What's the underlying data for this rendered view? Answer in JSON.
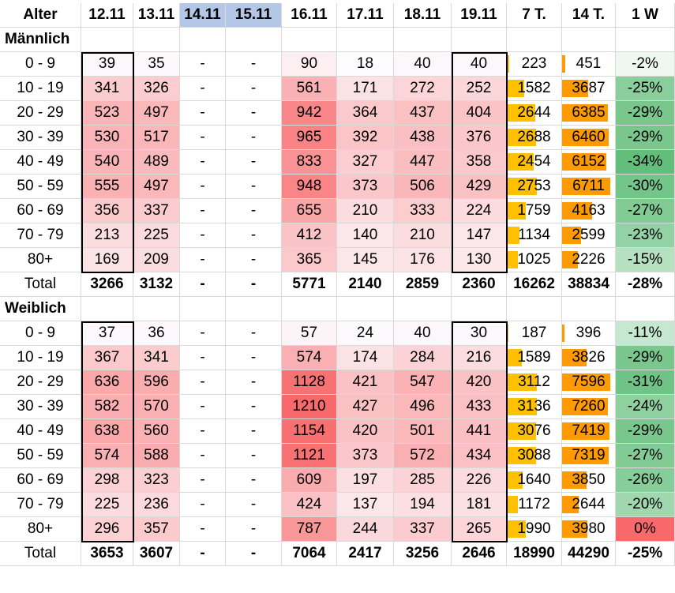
{
  "columns": [
    "Alter",
    "12.11",
    "13.11",
    "14.11",
    "15.11",
    "16.11",
    "17.11",
    "18.11",
    "19.11",
    "7 T.",
    "14 T.",
    "1 W"
  ],
  "empty_value": "-",
  "sections": [
    {
      "label": "Männlich",
      "rows": [
        {
          "age": "0 - 9",
          "v": [
            39,
            35,
            90,
            18,
            40,
            40
          ],
          "t7": 223,
          "t14": 451,
          "w": "-2%"
        },
        {
          "age": "10 - 19",
          "v": [
            341,
            326,
            561,
            171,
            272,
            252
          ],
          "t7": 1582,
          "t14": 3687,
          "w": "-25%"
        },
        {
          "age": "20 - 29",
          "v": [
            523,
            497,
            942,
            364,
            437,
            404
          ],
          "t7": 2644,
          "t14": 6385,
          "w": "-29%"
        },
        {
          "age": "30 - 39",
          "v": [
            530,
            517,
            965,
            392,
            438,
            376
          ],
          "t7": 2688,
          "t14": 6460,
          "w": "-29%"
        },
        {
          "age": "40 - 49",
          "v": [
            540,
            489,
            833,
            327,
            447,
            358
          ],
          "t7": 2454,
          "t14": 6152,
          "w": "-34%"
        },
        {
          "age": "50 - 59",
          "v": [
            555,
            497,
            948,
            373,
            506,
            429
          ],
          "t7": 2753,
          "t14": 6711,
          "w": "-30%"
        },
        {
          "age": "60 - 69",
          "v": [
            356,
            337,
            655,
            210,
            333,
            224
          ],
          "t7": 1759,
          "t14": 4163,
          "w": "-27%"
        },
        {
          "age": "70 - 79",
          "v": [
            213,
            225,
            412,
            140,
            210,
            147
          ],
          "t7": 1134,
          "t14": 2599,
          "w": "-23%"
        },
        {
          "age": "80+",
          "v": [
            169,
            209,
            365,
            145,
            176,
            130
          ],
          "t7": 1025,
          "t14": 2226,
          "w": "-15%"
        }
      ],
      "total": {
        "label": "Total",
        "v": [
          3266,
          3132,
          5771,
          2140,
          2859,
          2360
        ],
        "t7": 16262,
        "t14": 38834,
        "w": "-28%"
      }
    },
    {
      "label": "Weiblich",
      "rows": [
        {
          "age": "0 - 9",
          "v": [
            37,
            36,
            57,
            24,
            40,
            30
          ],
          "t7": 187,
          "t14": 396,
          "w": "-11%"
        },
        {
          "age": "10 - 19",
          "v": [
            367,
            341,
            574,
            174,
            284,
            216
          ],
          "t7": 1589,
          "t14": 3826,
          "w": "-29%"
        },
        {
          "age": "20 - 29",
          "v": [
            636,
            596,
            1128,
            421,
            547,
            420
          ],
          "t7": 3112,
          "t14": 7596,
          "w": "-31%"
        },
        {
          "age": "30 - 39",
          "v": [
            582,
            570,
            1210,
            427,
            496,
            433
          ],
          "t7": 3136,
          "t14": 7260,
          "w": "-24%"
        },
        {
          "age": "40 - 49",
          "v": [
            638,
            560,
            1154,
            420,
            501,
            441
          ],
          "t7": 3076,
          "t14": 7419,
          "w": "-29%"
        },
        {
          "age": "50 - 59",
          "v": [
            574,
            588,
            1121,
            373,
            572,
            434
          ],
          "t7": 3088,
          "t14": 7319,
          "w": "-27%"
        },
        {
          "age": "60 - 69",
          "v": [
            298,
            323,
            609,
            197,
            285,
            226
          ],
          "t7": 1640,
          "t14": 3850,
          "w": "-26%"
        },
        {
          "age": "70 - 79",
          "v": [
            225,
            236,
            424,
            137,
            194,
            181
          ],
          "t7": 1172,
          "t14": 2644,
          "w": "-20%"
        },
        {
          "age": "80+",
          "v": [
            296,
            357,
            787,
            244,
            337,
            265
          ],
          "t7": 1990,
          "t14": 3980,
          "w": "0%"
        }
      ],
      "total": {
        "label": "Total",
        "v": [
          3653,
          3607,
          7064,
          2417,
          3256,
          2646
        ],
        "t7": 18990,
        "t14": 44290,
        "w": "-25%"
      }
    }
  ],
  "colors": {
    "header_blue": "#b4c7e7",
    "heat_low": "#fcfcff",
    "heat_high": "#f8696b",
    "bar_7t": "#ffc000",
    "bar_14t": "#ff9a00",
    "green_low": "#ffffff",
    "green_high": "#63be7b",
    "zero_change": "#f8696b"
  },
  "chart_data": {
    "type": "table",
    "columns": [
      "Alter",
      "12.11",
      "13.11",
      "14.11",
      "15.11",
      "16.11",
      "17.11",
      "18.11",
      "19.11",
      "7 T.",
      "14 T.",
      "1 W"
    ],
    "groups": [
      "Männlich",
      "Weiblich"
    ],
    "missing_columns": [
      "14.11",
      "15.11"
    ],
    "heatmap_columns": [
      "12.11",
      "13.11",
      "16.11",
      "17.11",
      "18.11",
      "19.11"
    ],
    "databar_columns": [
      "7 T.",
      "14 T."
    ],
    "outlined_columns": [
      "12.11",
      "19.11"
    ]
  }
}
